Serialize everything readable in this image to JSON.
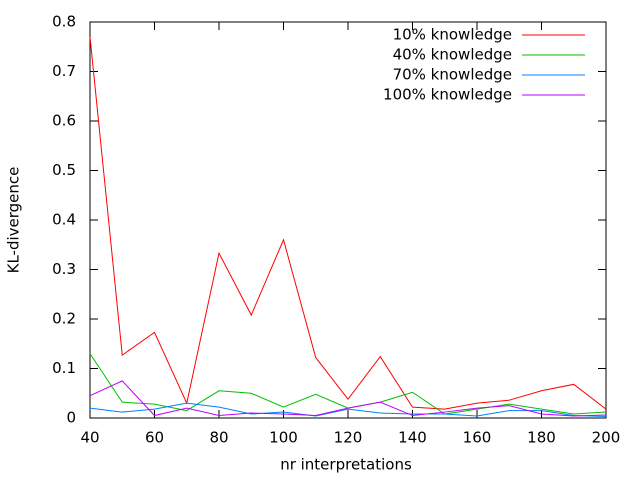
{
  "chart_data": {
    "type": "line",
    "x_label": "nr interpretations",
    "y_label": "KL-divergence",
    "x": [
      40,
      50,
      60,
      70,
      80,
      90,
      100,
      110,
      120,
      130,
      140,
      150,
      160,
      170,
      180,
      190,
      200
    ],
    "series": [
      {
        "name": "10% knowledge",
        "color": "#ff0000",
        "values": [
          0.77,
          0.127,
          0.173,
          0.03,
          0.333,
          0.208,
          0.36,
          0.122,
          0.038,
          0.124,
          0.022,
          0.018,
          0.03,
          0.036,
          0.055,
          0.068,
          0.018
        ]
      },
      {
        "name": "40% knowledge",
        "color": "#00c000",
        "values": [
          0.13,
          0.032,
          0.028,
          0.015,
          0.055,
          0.05,
          0.022,
          0.048,
          0.02,
          0.032,
          0.052,
          0.008,
          0.018,
          0.028,
          0.018,
          0.008,
          0.012
        ]
      },
      {
        "name": "70% knowledge",
        "color": "#0080ff",
        "values": [
          0.02,
          0.012,
          0.018,
          0.03,
          0.022,
          0.008,
          0.012,
          0.004,
          0.018,
          0.01,
          0.008,
          0.008,
          0.004,
          0.015,
          0.015,
          0.005,
          0.003
        ]
      },
      {
        "name": "100% knowledge",
        "color": "#c000ff",
        "values": [
          0.045,
          0.075,
          0.005,
          0.02,
          0.005,
          0.01,
          0.008,
          0.005,
          0.02,
          0.032,
          0.005,
          0.012,
          0.02,
          0.025,
          0.008,
          0.004,
          0.006
        ]
      }
    ],
    "xlim": [
      40,
      200
    ],
    "xticks": [
      40,
      60,
      80,
      100,
      120,
      140,
      160,
      180,
      200
    ],
    "ylim": [
      0,
      0.8
    ],
    "yticks": [
      0,
      0.1,
      0.2,
      0.3,
      0.4,
      0.5,
      0.6,
      0.7,
      0.8
    ],
    "legend": "top right",
    "grid": false
  }
}
